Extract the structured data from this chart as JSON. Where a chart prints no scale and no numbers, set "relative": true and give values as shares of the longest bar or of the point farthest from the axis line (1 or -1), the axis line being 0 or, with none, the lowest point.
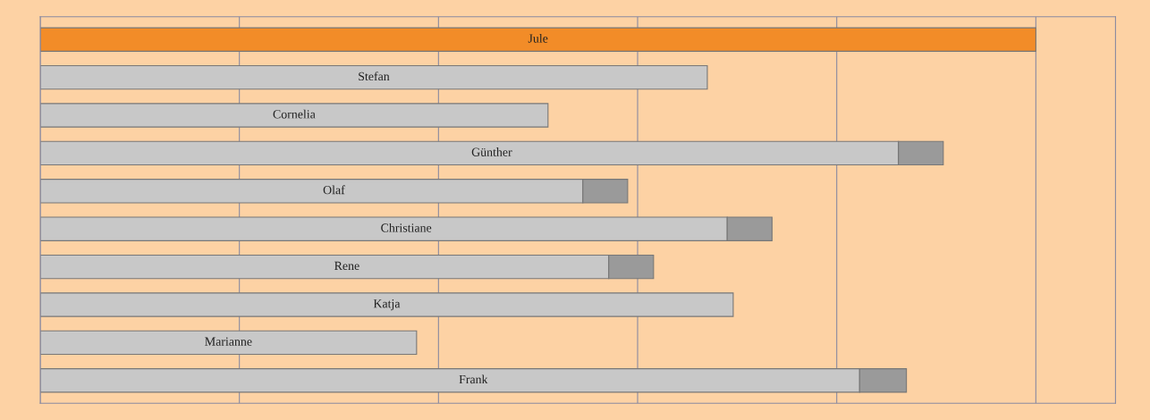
{
  "chart_data": {
    "type": "bar",
    "orientation": "horizontal",
    "stacked": true,
    "relative": true,
    "grid": "x",
    "categories": [
      "Jule",
      "Stefan",
      "Cornelia",
      "Günther",
      "Olaf",
      "Christiane",
      "Rene",
      "Katja",
      "Marianne",
      "Frank"
    ],
    "series": [
      {
        "colors": [
          "#f28c28",
          "#c8c8c8",
          "#c8c8c8",
          "#c8c8c8",
          "#c8c8c8",
          "#c8c8c8",
          "#c8c8c8",
          "#c8c8c8",
          "#c8c8c8",
          "#c8c8c8"
        ],
        "values": [
          1.0,
          0.67,
          0.51,
          0.862,
          0.545,
          0.69,
          0.571,
          0.696,
          0.378,
          0.823
        ]
      },
      {
        "color": "#9a9a9a",
        "values": [
          null,
          null,
          null,
          0.045,
          0.045,
          0.045,
          0.045,
          null,
          null,
          0.047
        ]
      }
    ]
  }
}
